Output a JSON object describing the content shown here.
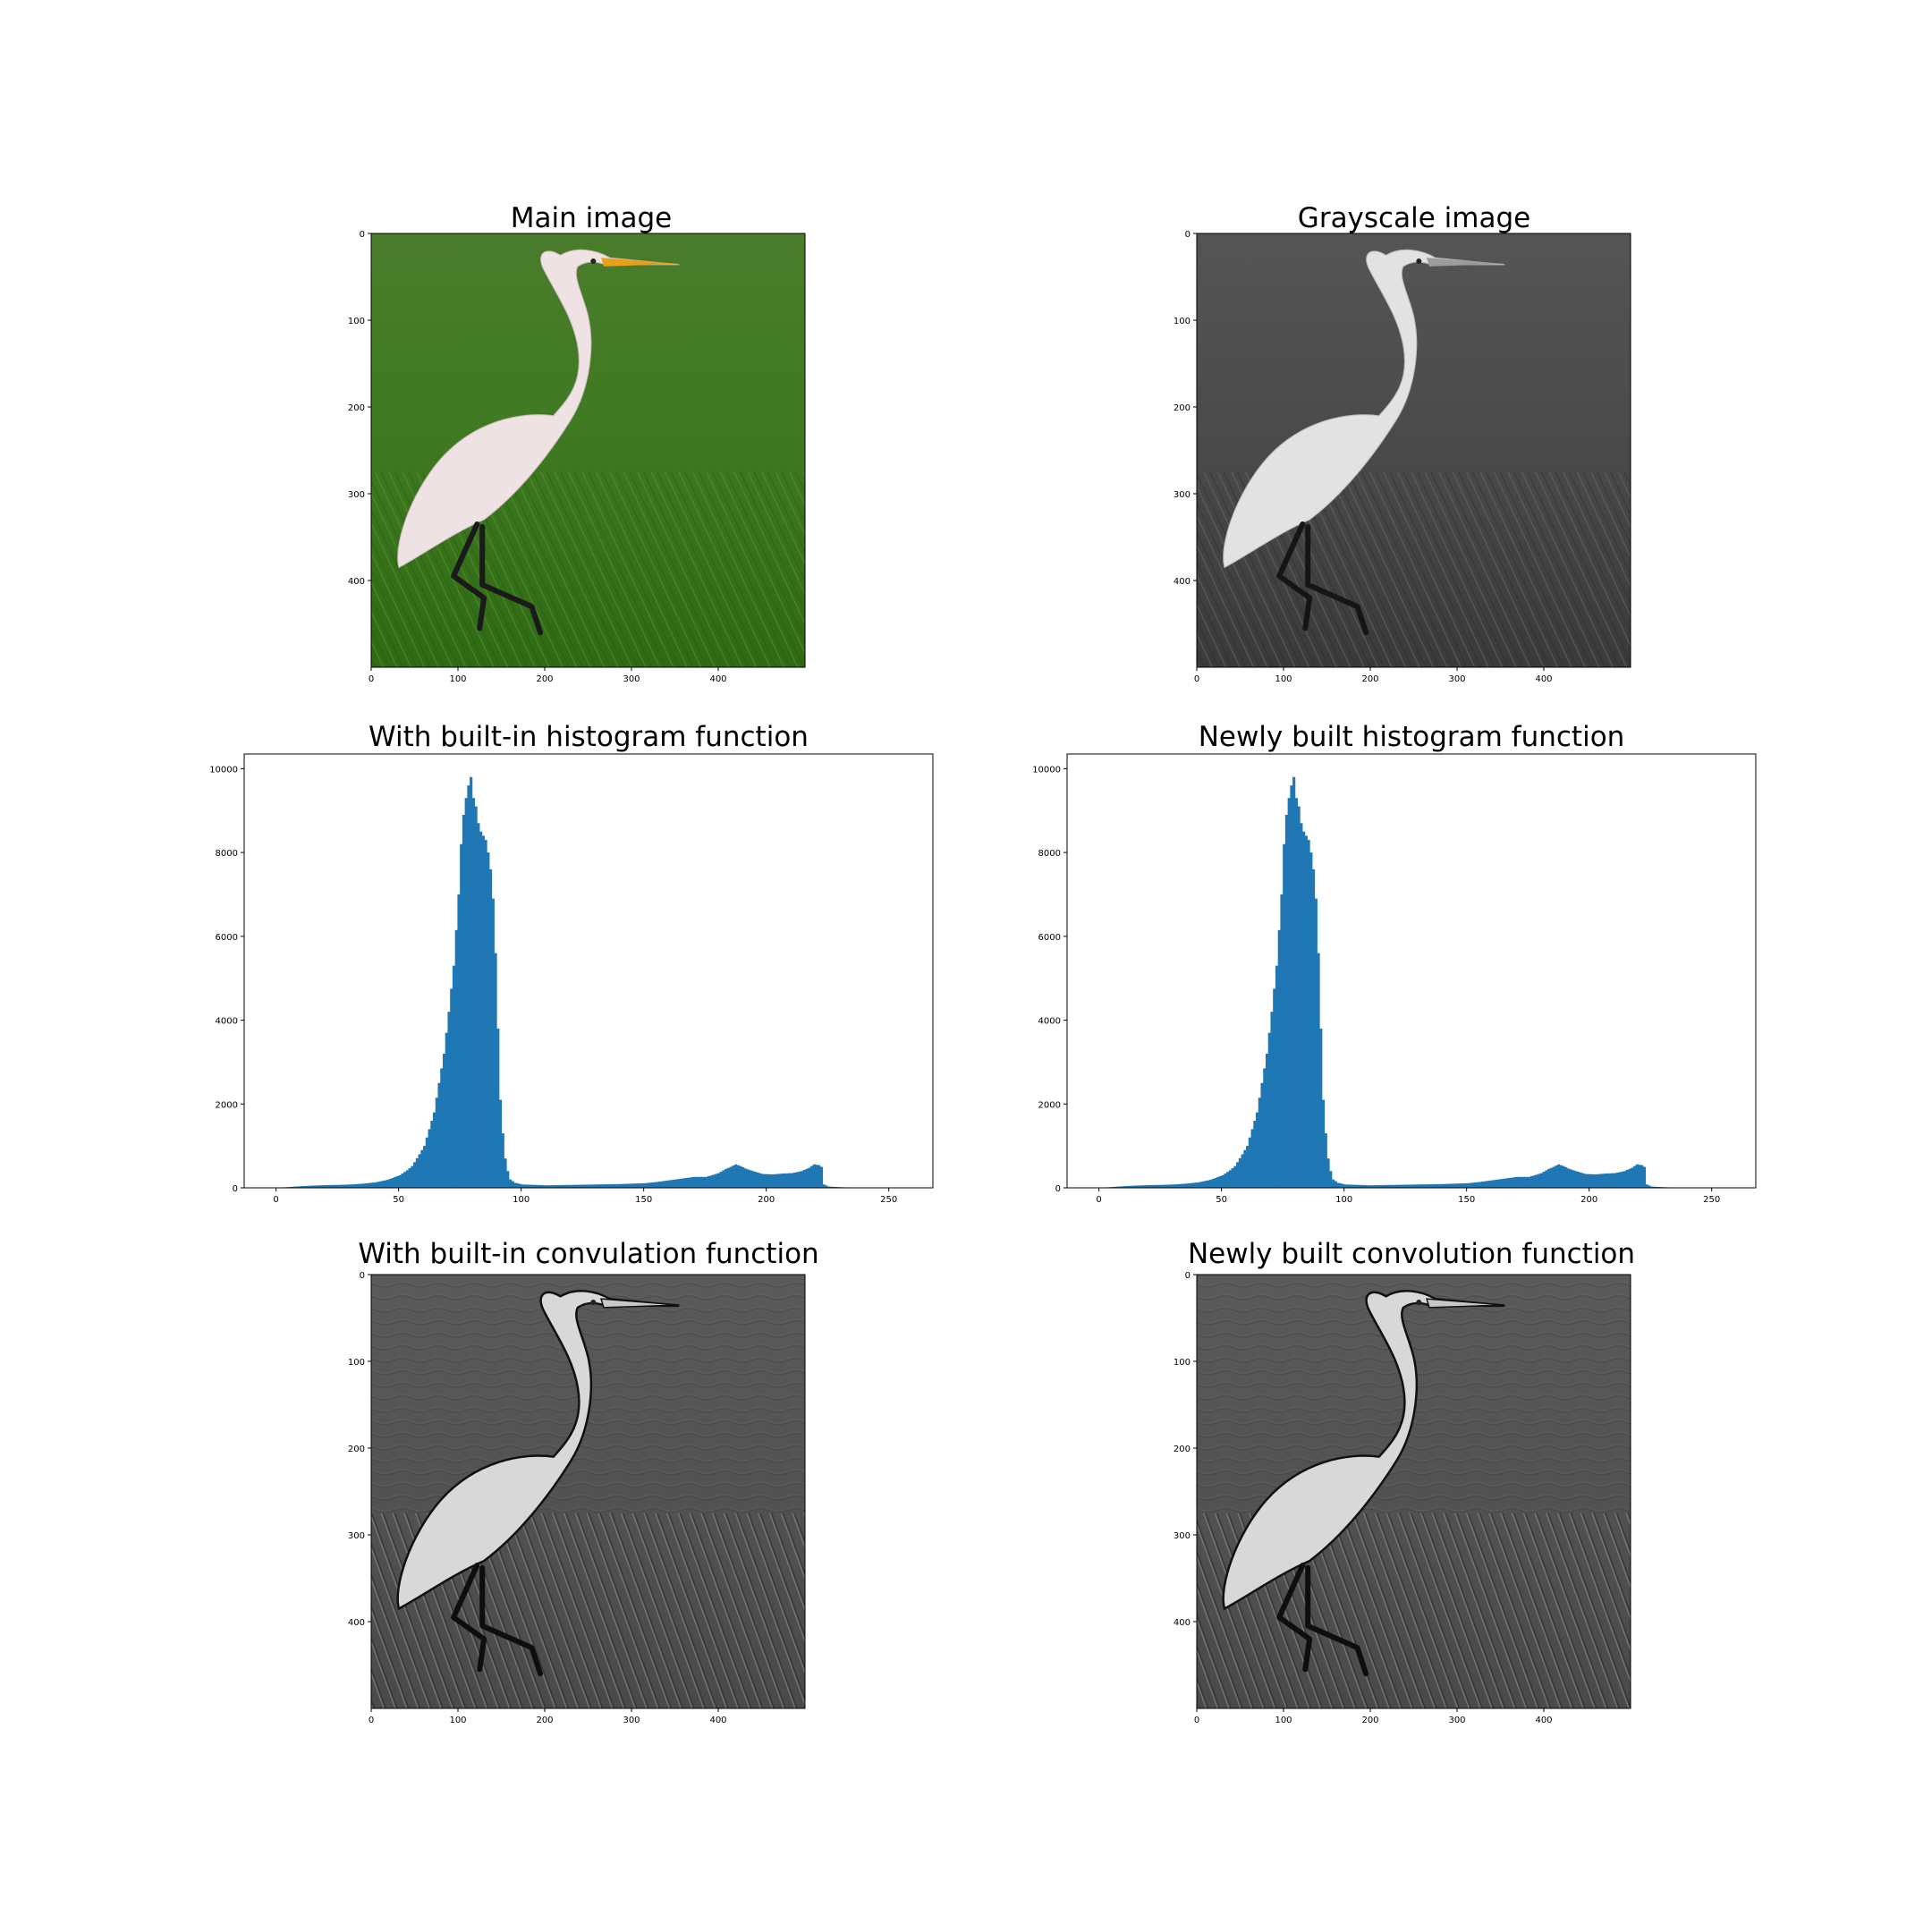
{
  "figure": {
    "panels": [
      {
        "id": "main",
        "title": "Main image",
        "kind": "image",
        "colormap": "color",
        "x_ticks": [
          "0",
          "100",
          "200",
          "300",
          "400"
        ],
        "y_ticks": [
          "0",
          "100",
          "200",
          "300",
          "400"
        ]
      },
      {
        "id": "gray",
        "title": "Grayscale image",
        "kind": "image",
        "colormap": "gray",
        "x_ticks": [
          "0",
          "100",
          "200",
          "300",
          "400"
        ],
        "y_ticks": [
          "0",
          "100",
          "200",
          "300",
          "400"
        ]
      },
      {
        "id": "hist_builtin",
        "title": "With built-in histogram function",
        "kind": "histogram"
      },
      {
        "id": "hist_new",
        "title": "Newly built histogram function",
        "kind": "histogram"
      },
      {
        "id": "conv_builtin",
        "title": "With built-in convulation function",
        "kind": "image",
        "colormap": "emboss",
        "x_ticks": [
          "0",
          "100",
          "200",
          "300",
          "400"
        ],
        "y_ticks": [
          "0",
          "100",
          "200",
          "300",
          "400"
        ]
      },
      {
        "id": "conv_new",
        "title": "Newly built convolution function",
        "kind": "image",
        "colormap": "emboss",
        "x_ticks": [
          "0",
          "100",
          "200",
          "300",
          "400"
        ],
        "y_ticks": [
          "0",
          "100",
          "200",
          "300",
          "400"
        ]
      }
    ]
  },
  "chart_data": [
    {
      "type": "bar",
      "title": "With built-in histogram function",
      "xlabel": "",
      "ylabel": "",
      "xlim": [
        -13,
        268
      ],
      "ylim": [
        0,
        10350
      ],
      "x_ticks": [
        0,
        50,
        100,
        150,
        200,
        250
      ],
      "y_ticks": [
        0,
        2000,
        4000,
        6000,
        8000,
        10000
      ],
      "bar_color": "#1f77b4",
      "bins": {
        "start": 0,
        "width": 1
      },
      "anchors": [
        [
          0,
          0
        ],
        [
          1,
          5
        ],
        [
          5,
          20
        ],
        [
          10,
          40
        ],
        [
          15,
          55
        ],
        [
          20,
          65
        ],
        [
          25,
          70
        ],
        [
          30,
          80
        ],
        [
          35,
          100
        ],
        [
          40,
          130
        ],
        [
          45,
          190
        ],
        [
          50,
          300
        ],
        [
          53,
          420
        ],
        [
          55,
          520
        ],
        [
          58,
          800
        ],
        [
          60,
          1000
        ],
        [
          62,
          1400
        ],
        [
          64,
          1800
        ],
        [
          66,
          2500
        ],
        [
          68,
          3200
        ],
        [
          70,
          4200
        ],
        [
          72,
          5300
        ],
        [
          74,
          7000
        ],
        [
          75,
          8200
        ],
        [
          76,
          8900
        ],
        [
          77,
          9300
        ],
        [
          78,
          9600
        ],
        [
          79,
          9800
        ],
        [
          80,
          9300
        ],
        [
          81,
          9100
        ],
        [
          82,
          8700
        ],
        [
          83,
          8500
        ],
        [
          84,
          8400
        ],
        [
          85,
          8300
        ],
        [
          86,
          8000
        ],
        [
          87,
          7600
        ],
        [
          88,
          6900
        ],
        [
          89,
          5600
        ],
        [
          90,
          3800
        ],
        [
          91,
          2100
        ],
        [
          92,
          1300
        ],
        [
          93,
          700
        ],
        [
          94,
          400
        ],
        [
          95,
          200
        ],
        [
          97,
          120
        ],
        [
          100,
          80
        ],
        [
          110,
          60
        ],
        [
          120,
          70
        ],
        [
          130,
          80
        ],
        [
          140,
          90
        ],
        [
          150,
          110
        ],
        [
          155,
          140
        ],
        [
          160,
          180
        ],
        [
          165,
          220
        ],
        [
          170,
          260
        ],
        [
          175,
          260
        ],
        [
          180,
          350
        ],
        [
          183,
          450
        ],
        [
          185,
          500
        ],
        [
          187,
          560
        ],
        [
          189,
          520
        ],
        [
          191,
          460
        ],
        [
          194,
          400
        ],
        [
          198,
          330
        ],
        [
          202,
          320
        ],
        [
          206,
          340
        ],
        [
          210,
          350
        ],
        [
          214,
          400
        ],
        [
          217,
          480
        ],
        [
          219,
          560
        ],
        [
          221,
          540
        ],
        [
          222,
          500
        ],
        [
          223,
          80
        ],
        [
          225,
          30
        ],
        [
          230,
          15
        ],
        [
          235,
          5
        ],
        [
          255,
          0
        ]
      ]
    },
    {
      "type": "bar",
      "title": "Newly built histogram function",
      "xlabel": "",
      "ylabel": "",
      "xlim": [
        -13,
        268
      ],
      "ylim": [
        0,
        10350
      ],
      "x_ticks": [
        0,
        50,
        100,
        150,
        200,
        250
      ],
      "y_ticks": [
        0,
        2000,
        4000,
        6000,
        8000,
        10000
      ],
      "bar_color": "#1f77b4",
      "bins": {
        "start": 0,
        "width": 1
      },
      "anchors": [
        [
          0,
          0
        ],
        [
          1,
          5
        ],
        [
          5,
          20
        ],
        [
          10,
          40
        ],
        [
          15,
          55
        ],
        [
          20,
          65
        ],
        [
          25,
          70
        ],
        [
          30,
          80
        ],
        [
          35,
          100
        ],
        [
          40,
          130
        ],
        [
          45,
          190
        ],
        [
          50,
          300
        ],
        [
          53,
          420
        ],
        [
          55,
          520
        ],
        [
          58,
          800
        ],
        [
          60,
          1000
        ],
        [
          62,
          1400
        ],
        [
          64,
          1800
        ],
        [
          66,
          2500
        ],
        [
          68,
          3200
        ],
        [
          70,
          4200
        ],
        [
          72,
          5300
        ],
        [
          74,
          7000
        ],
        [
          75,
          8200
        ],
        [
          76,
          8900
        ],
        [
          77,
          9300
        ],
        [
          78,
          9600
        ],
        [
          79,
          9800
        ],
        [
          80,
          9300
        ],
        [
          81,
          9100
        ],
        [
          82,
          8700
        ],
        [
          83,
          8500
        ],
        [
          84,
          8400
        ],
        [
          85,
          8300
        ],
        [
          86,
          8000
        ],
        [
          87,
          7600
        ],
        [
          88,
          6900
        ],
        [
          89,
          5600
        ],
        [
          90,
          3800
        ],
        [
          91,
          2100
        ],
        [
          92,
          1300
        ],
        [
          93,
          700
        ],
        [
          94,
          400
        ],
        [
          95,
          200
        ],
        [
          97,
          120
        ],
        [
          100,
          80
        ],
        [
          110,
          60
        ],
        [
          120,
          70
        ],
        [
          130,
          80
        ],
        [
          140,
          90
        ],
        [
          150,
          110
        ],
        [
          155,
          140
        ],
        [
          160,
          180
        ],
        [
          165,
          220
        ],
        [
          170,
          260
        ],
        [
          175,
          260
        ],
        [
          180,
          350
        ],
        [
          183,
          450
        ],
        [
          185,
          500
        ],
        [
          187,
          560
        ],
        [
          189,
          520
        ],
        [
          191,
          460
        ],
        [
          194,
          400
        ],
        [
          198,
          330
        ],
        [
          202,
          320
        ],
        [
          206,
          340
        ],
        [
          210,
          350
        ],
        [
          214,
          400
        ],
        [
          217,
          480
        ],
        [
          219,
          560
        ],
        [
          221,
          540
        ],
        [
          222,
          500
        ],
        [
          223,
          80
        ],
        [
          225,
          30
        ],
        [
          230,
          15
        ],
        [
          235,
          5
        ],
        [
          255,
          0
        ]
      ]
    }
  ]
}
